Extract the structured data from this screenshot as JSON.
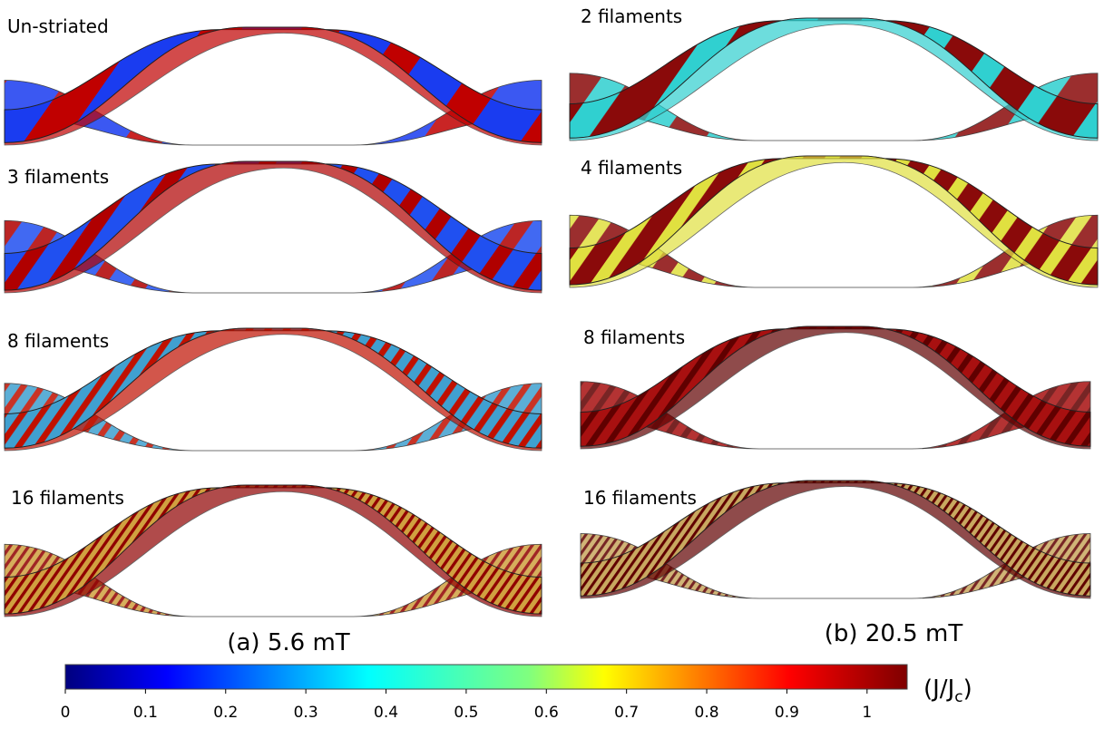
{
  "left_panels": [
    {
      "label": "Un-striated"
    },
    {
      "label": "3 filaments"
    },
    {
      "label": "8 filaments"
    },
    {
      "label": "16 filaments"
    }
  ],
  "right_panels": [
    {
      "label": "2 filaments"
    },
    {
      "label": "4 filaments"
    },
    {
      "label": "8 filaments"
    },
    {
      "label": "16 filaments"
    }
  ],
  "captions": {
    "a": "(a) 5.6 mT",
    "b": "(b) 20.5 mT"
  },
  "colorbar": {
    "lim": [
      0,
      1.05
    ],
    "ticks": [
      0,
      0.1,
      0.2,
      0.3,
      0.4,
      0.5,
      0.6,
      0.7,
      0.8,
      0.9,
      1
    ],
    "unit": {
      "text": "(J/J",
      "subscript": "c",
      "close": ")"
    }
  }
}
